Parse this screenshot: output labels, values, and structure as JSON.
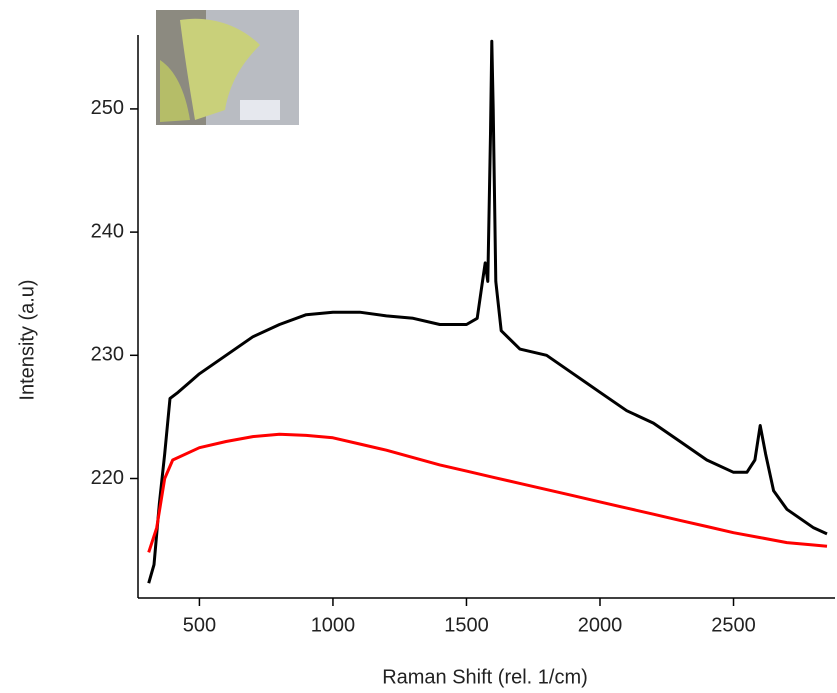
{
  "chart_data": {
    "type": "line",
    "x_label": "Raman Shift  (rel. 1/cm)",
    "y_label": "Intensity  (a.u)",
    "xlim": [
      270,
      2880
    ],
    "xticks": [
      500,
      1000,
      1500,
      2000,
      2500
    ],
    "ylim": [
      210.3,
      256
    ],
    "yticks": [
      220,
      230,
      240,
      250
    ],
    "series": [
      {
        "color": "#000000",
        "x": [
          310,
          330,
          350,
          370,
          390,
          420,
          500,
          600,
          700,
          800,
          900,
          1000,
          1100,
          1200,
          1300,
          1400,
          1500,
          1540,
          1560,
          1570,
          1580,
          1590,
          1595,
          1600,
          1610,
          1630,
          1700,
          1800,
          1900,
          2000,
          2100,
          2200,
          2300,
          2400,
          2500,
          2550,
          2580,
          2600,
          2620,
          2650,
          2700,
          2800,
          2850
        ],
        "values": [
          211.5,
          213,
          218,
          222,
          226.5,
          227,
          228.5,
          230,
          231.5,
          232.5,
          233.3,
          233.5,
          233.5,
          233.2,
          233,
          232.5,
          232.5,
          233,
          236,
          237.5,
          236,
          248,
          255.5,
          250,
          236,
          232,
          230.5,
          230,
          228.5,
          227,
          225.5,
          224.5,
          223,
          221.5,
          220.5,
          220.5,
          221.5,
          224.3,
          222,
          219,
          217.5,
          216,
          215.5
        ]
      },
      {
        "color": "#ff0000",
        "x": [
          310,
          340,
          370,
          400,
          500,
          600,
          700,
          800,
          900,
          1000,
          1100,
          1200,
          1300,
          1400,
          1500,
          1600,
          1700,
          1800,
          1900,
          2000,
          2100,
          2200,
          2300,
          2400,
          2500,
          2600,
          2700,
          2800,
          2850
        ],
        "values": [
          214,
          216,
          220,
          221.5,
          222.5,
          223,
          223.4,
          223.6,
          223.5,
          223.3,
          222.8,
          222.3,
          221.7,
          221.1,
          220.6,
          220.1,
          219.6,
          219.1,
          218.6,
          218.1,
          217.6,
          217.1,
          216.6,
          216.1,
          215.6,
          215.2,
          214.8,
          214.6,
          214.5
        ]
      }
    ]
  }
}
